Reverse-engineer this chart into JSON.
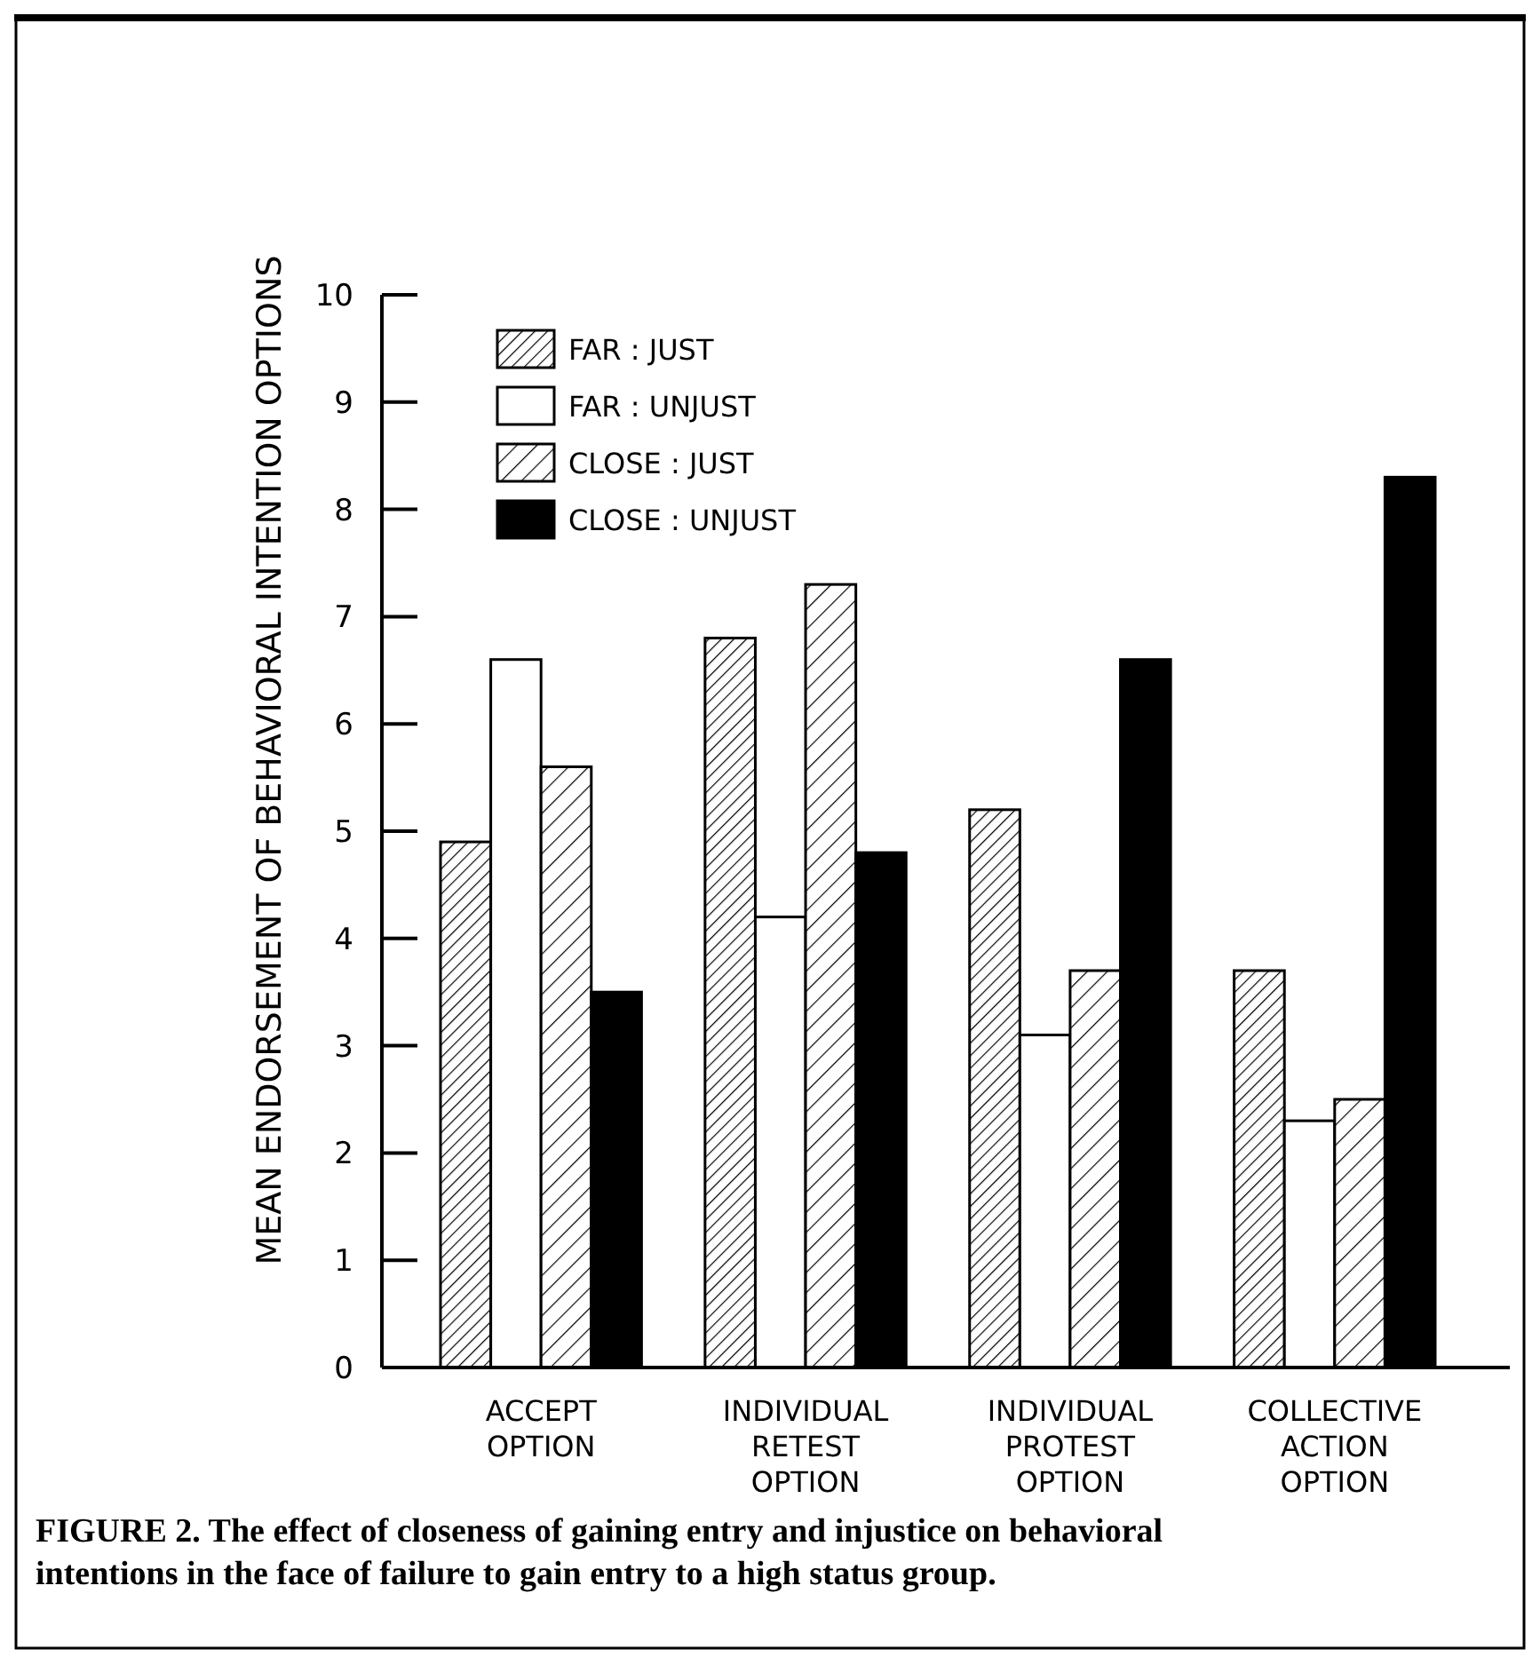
{
  "chart_data": {
    "type": "bar",
    "title": "FIGURE 2. The effect of closeness of gaining entry and injustice on behavioral intentions in the face of failure to gain entry to a high status group.",
    "ylabel": "MEAN ENDORSEMENT OF BEHAVIORAL INTENTION OPTIONS",
    "categories": [
      "ACCEPT OPTION",
      "INDIVIDUAL RETEST OPTION",
      "INDIVIDUAL PROTEST OPTION",
      "COLLECTIVE ACTION OPTION"
    ],
    "series": [
      {
        "name": "FAR : JUST",
        "color": "#000000",
        "values": [
          4.9,
          6.8,
          5.2,
          3.7
        ]
      },
      {
        "name": "FAR : UNJUST",
        "color": "#ffffff",
        "values": [
          6.6,
          4.2,
          3.1,
          2.3
        ]
      },
      {
        "name": "CLOSE : JUST",
        "color": "#000000",
        "values": [
          5.6,
          7.3,
          3.7,
          2.5
        ]
      },
      {
        "name": "CLOSE : UNJUST",
        "color": "#000000",
        "values": [
          3.5,
          4.8,
          6.6,
          8.3
        ]
      }
    ],
    "ylim": [
      0,
      10
    ],
    "yticks": [
      0,
      1,
      2,
      3,
      4,
      5,
      6,
      7,
      8,
      9,
      10
    ],
    "grid": false,
    "legend": "top"
  }
}
